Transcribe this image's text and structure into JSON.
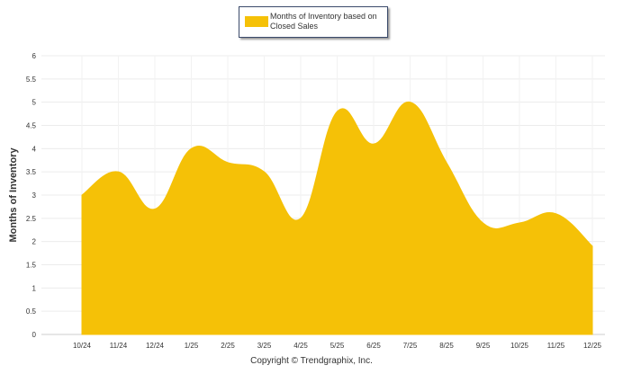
{
  "chart_data": {
    "type": "area",
    "title": "",
    "ylabel": "Months of Inventory",
    "xlabel": "",
    "categories": [
      "10/24",
      "11/24",
      "12/24",
      "1/25",
      "2/25",
      "3/25",
      "4/25",
      "5/25",
      "6/25",
      "7/25",
      "8/25",
      "9/25",
      "10/25",
      "11/25",
      "12/25"
    ],
    "series": [
      {
        "name": "Months of Inventory based on Closed Sales",
        "values": [
          3.0,
          3.5,
          2.7,
          4.0,
          3.7,
          3.5,
          2.5,
          4.8,
          4.1,
          5.0,
          3.7,
          2.4,
          2.4,
          2.6,
          1.9
        ],
        "color": "#f5c107"
      }
    ],
    "ylim": [
      0,
      6
    ],
    "yticks": [
      "0",
      "0.5",
      "1",
      "1.5",
      "2",
      "2.5",
      "3",
      "3.5",
      "4",
      "4.5",
      "5",
      "5.5",
      "6"
    ],
    "grid": true,
    "legend_position": "top-center"
  },
  "legend_label": "Months of Inventory based on Closed Sales",
  "footer": "Copyright © Trendgraphix, Inc."
}
